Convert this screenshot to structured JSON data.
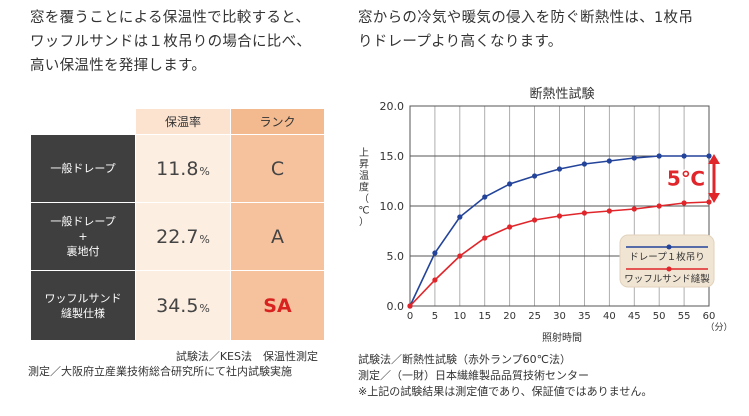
{
  "left_intro": [
    "窓を覆うことによる保温性で比較すると、",
    "ワッフルサンドは１枚吊りの場合に比べ、",
    "高い保温性を発揮します。"
  ],
  "right_intro": [
    "窓からの冷気や暖気の侵入を防ぐ断熱性は、1枚吊",
    "りドレープより高くなります。"
  ],
  "table": {
    "col_rate": "保温率",
    "col_rank": "ランク",
    "rows": [
      {
        "name_lines": [
          "一般ドレープ"
        ],
        "rate": "11.8",
        "unit": "%",
        "rank": "C",
        "highlight": false
      },
      {
        "name_lines": [
          "一般ドレープ",
          "+",
          "裏地付"
        ],
        "rate": "22.7",
        "unit": "%",
        "rank": "A",
        "highlight": false
      },
      {
        "name_lines": [
          "ワッフルサンド",
          "縫製仕様"
        ],
        "rate": "34.5",
        "unit": "%",
        "rank": "SA",
        "highlight": true
      }
    ]
  },
  "left_notes": [
    "試験法／KES法　保温性測定",
    "測定／大阪府立産業技術総合研究所にて社内試験実施"
  ],
  "right_notes": [
    "試験法／断熱性試験（赤外ランプ60℃法）",
    "測定／（一財）日本繊維製品品質技術センター",
    "※上記の試験結果は測定値であり、保証値ではありません。"
  ],
  "colors": {
    "drape": "#23449a",
    "waffle": "#e0262b",
    "legend_bg": "#f0e4d3",
    "arrow": "#e0262b"
  },
  "chart_data": {
    "type": "line",
    "title": "断熱性試験",
    "xlabel": "照射時間",
    "xunit": "（分）",
    "ylabel": "上昇温度（℃）",
    "xlim": [
      0,
      60
    ],
    "ylim": [
      0,
      20
    ],
    "xticks": [
      "0",
      "5",
      "10",
      "15",
      "20",
      "25",
      "30",
      "35",
      "40",
      "45",
      "50",
      "55",
      "60"
    ],
    "yticks": [
      "0.0",
      "5.0",
      "10.0",
      "15.0",
      "20.0"
    ],
    "grid": true,
    "legend_position": "lower-right",
    "annotation": {
      "label": "5℃",
      "x": 60,
      "y_from": 10.4,
      "y_to": 15.1
    },
    "series": [
      {
        "name": "ドレープ１枚吊り",
        "color": "#23449a",
        "x": [
          0,
          5,
          10,
          15,
          20,
          25,
          30,
          35,
          40,
          45,
          50,
          55,
          60
        ],
        "y": [
          0,
          5.3,
          8.9,
          10.9,
          12.2,
          13.0,
          13.7,
          14.2,
          14.5,
          14.8,
          15.0,
          15.0,
          15.0
        ]
      },
      {
        "name": "ワッフルサンド縫製",
        "color": "#e0262b",
        "x": [
          0,
          5,
          10,
          15,
          20,
          25,
          30,
          35,
          40,
          45,
          50,
          55,
          60
        ],
        "y": [
          0,
          2.6,
          5.0,
          6.8,
          7.9,
          8.6,
          9.0,
          9.3,
          9.5,
          9.7,
          10.0,
          10.3,
          10.4
        ]
      }
    ]
  }
}
